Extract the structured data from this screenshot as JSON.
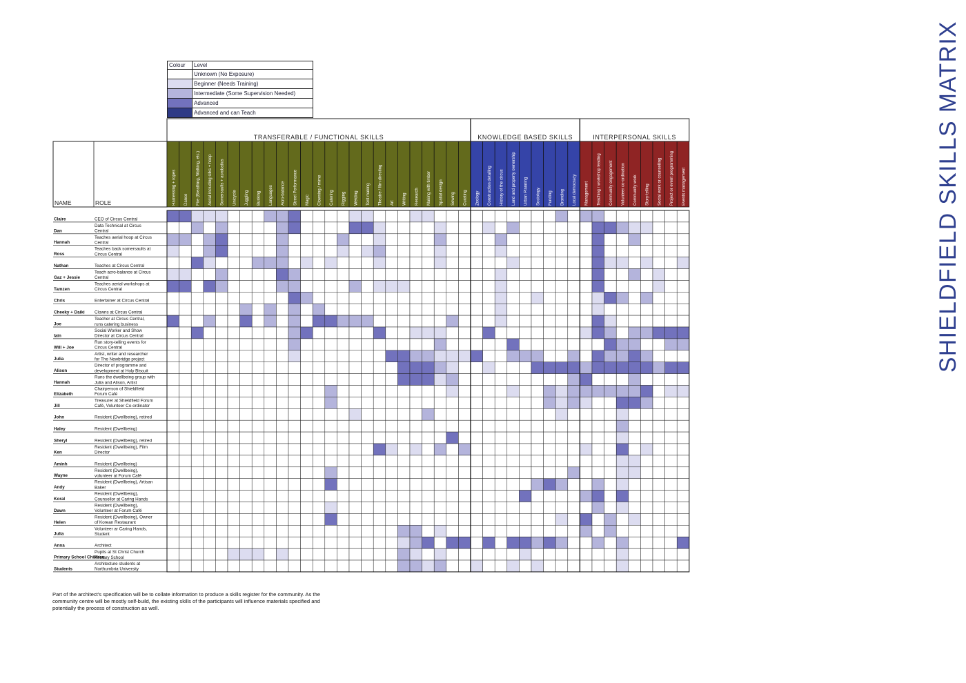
{
  "title": "SHIELDFIELD SKILLS MATRIX",
  "legend": {
    "header": {
      "colour": "Colour",
      "level": "Level"
    },
    "levels": [
      {
        "label": "Unknown (No Exposure)",
        "color": "#ffffff"
      },
      {
        "label": "Beginner (Needs Training)",
        "color": "#dcdcf0"
      },
      {
        "label": "Intermediate (Some Supervision Needed)",
        "color": "#b4b4dc"
      },
      {
        "label": "Advanced",
        "color": "#7272bd"
      },
      {
        "label": "Advanced and can Teach",
        "color": "#2e3a86"
      }
    ]
  },
  "headers": {
    "name": "NAME",
    "role": "ROLE"
  },
  "groups": [
    {
      "label": "TRANSFERABLE / FUNCTIONAL SKILLS",
      "color": "#636a1c",
      "skills": [
        "Harnessing + ropes",
        "Dance",
        "Fire (Breathing, Walking, etc.)",
        "Aerial including silks + hoop",
        "Somersaults + acrobatics",
        "Unicycle",
        "Juggling",
        "Busking",
        "Languages",
        "Acro-balance",
        "Street Performance",
        "Magic",
        "Clowning / mime",
        "Catering",
        "Rigging",
        "Welding",
        "Tent making",
        "Theatre / film directing",
        "Art",
        "Writing",
        "Research",
        "Making with timber",
        "Spatial design",
        "Sewing",
        "Curating"
      ]
    },
    {
      "label": "KNOWLEDGE BASED SKILLS",
      "color": "#3544a8",
      "skills": [
        "Zoology",
        "Construction detailing",
        "History of the circus",
        "Land and property ownership",
        "Urban Planning",
        "Sociology",
        "Funding",
        "Branding",
        "Local democracy"
      ]
    },
    {
      "label": "INTERPERSONAL SKILLS",
      "color": "#8f2424",
      "skills": [
        "Management",
        "Teaching / workshop leading",
        "Community engagement",
        "Volunteer co-ordination",
        "Community work",
        "Story-telling",
        "Social work or counselling",
        "Project or event programming",
        "Events management"
      ]
    }
  ],
  "people": [
    {
      "name": "Claire",
      "role": "CEO of Circus Central",
      "levels": "44222111334111122111221111111111313311111113433222133"
    },
    {
      "name": "Dan",
      "role": "Data Technical at Circus Central",
      "levels": "11313111134111144211112111213111111443221111111113332"
    },
    {
      "name": "Hannah",
      "role": "Teaches aerial hoop at Circus Central",
      "levels": "33134111131111311211113111131111111411311111111111131"
    },
    {
      "name": "Ross",
      "role": "Teaches back somersaults at Circus Central",
      "levels": "21134111131111212311112111121111111411111111111111111"
    },
    {
      "name": "Nathan",
      "role": "Teaches at Circus Central",
      "levels": "11421113331212111211112111112111111422121122111111111"
    },
    {
      "name": "Gaz + Jessie",
      "role": "Teach acro-balance at Circus Central",
      "levels": "22113111143111111111111111121111111411312111111111111"
    },
    {
      "name": "Tamzen",
      "role": "Teaches aerial workshops at Circus Central",
      "levels": "44143111133111131222111111121111111411112111111111111"
    },
    {
      "name": "Chris",
      "role": "Entertainer at Circus Central",
      "levels": "11111111114311111111111111121121111243131111111111111"
    },
    {
      "name": "Cheeky + Daiki",
      "role": "Clowns at Circus Central",
      "levels": "11111131313131111111111111121111111211111111111111111"
    },
    {
      "name": "Joe",
      "role": "Teacher at Circus Central, runs catering business",
      "levels": "41131141313144333111111311121111111421111111111111111"
    },
    {
      "name": "Iain",
      "role": "Social Worker and Show Director at Circus Central",
      "levels": "11411111113411111411222111411111112431334444444444444"
    },
    {
      "name": "Will + Joe",
      "role": "Run story-telling events for Circus Central",
      "levels": "11111111113111111111113111114111111143311334444444444"
    },
    {
      "name": "Julia",
      "role": "Artist, writer and researcher for The Newbridge project",
      "levels": "11111111112111111144332224113331131433431111333333333"
    },
    {
      "name": "Alison",
      "role": "Director of programme and development at Holy Biscuit",
      "levels": "11111111111111111114443211211144443444443444444444444"
    },
    {
      "name": "Hannah",
      "role": "Runs the dwellbeing group with Julia and Alison, Artist",
      "levels": "11111111111111111114442311111111134111311114421112111"
    },
    {
      "name": "Elizabeth",
      "role": "Chairperson of Shieldfield Forum Café",
      "levels": "11111111111113111111111211112113233333341222222222222"
    },
    {
      "name": "Jill",
      "role": "Treasurer at Shieldfield Forum Café, Volunteer Co-ordinator",
      "levels": "11111111111113111111111111111113232114431111111111111"
    },
    {
      "name": "John",
      "role": "Resident (Dwellbeing), retired",
      "levels": "11111111111111121111131111111111211112111111111111111"
    },
    {
      "name": "Haley",
      "role": "Resident (Dwellbeing)",
      "levels": "11111111111111111111111111111111111113111111111111111"
    },
    {
      "name": "Sheryl",
      "role": "Resident (Dwellbeing), retired",
      "levels": "11111111111111111111111411111111111112111111111111111"
    },
    {
      "name": "Ken",
      "role": "Resident (Dwellbeing), Film Director",
      "levels": "11111111111111111421213131111111112114121111111111111"
    },
    {
      "name": "Aminh",
      "role": "Resident (Dwellbeing)",
      "levels": "11111111111111111111111111111111111112211111111111111"
    },
    {
      "name": "Wayne",
      "role": "Resident (Dwellbeing), volunteer at Forum Café",
      "levels": "11111111111113111111111111111111131112211111111111111"
    },
    {
      "name": "Andy",
      "role": "Resident (Dwellbeing), Artisan Baker",
      "levels": "11111111111114111111111111111134311312111111111111111"
    },
    {
      "name": "Koral",
      "role": "Resident (Dwellbeing), Counsellor at Caring Hands",
      "levels": "11111111111111111111111111111411113414111111111111111"
    },
    {
      "name": "Dawn",
      "role": "Resident (Dwellbeing), Volunteer at Forum Café",
      "levels": "11111111111112111111111111111111111312111111111111111"
    },
    {
      "name": "Helen",
      "role": "Resident (Dwellbeing), Owner of Korean Restaurant",
      "levels": "11111111111114111111111111111111214131211111111111111"
    },
    {
      "name": "Julia",
      "role": "Volunteer ar Caring Hands, Student",
      "levels": "11111111111111111113312111111111113131111111111111111"
    },
    {
      "name": "Anna",
      "role": "Architect",
      "levels": "11111111111111111112341441414434311313111141111111111"
    },
    {
      "name": "Primary School Children",
      "role": "Pupils at St Christ Church Primary School",
      "levels": "11111222121111111113212111111211111112111111111111111"
    },
    {
      "name": "Students",
      "role": "Architecture students at Northumbria University",
      "levels": "11111111111111111113323112112121111112111111111111111"
    }
  ],
  "caption": "Part of the architect's specification will be to collate information to produce a skills register for the community. As the community centre will be mostly self-build, the existing skills of the participants will influence materials specified and potentially the process of construction as well."
}
